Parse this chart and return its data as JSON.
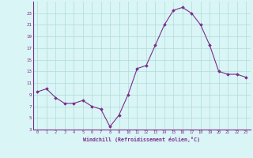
{
  "x": [
    0,
    1,
    2,
    3,
    4,
    5,
    6,
    7,
    8,
    9,
    10,
    11,
    12,
    13,
    14,
    15,
    16,
    17,
    18,
    19,
    20,
    21,
    22,
    23
  ],
  "y": [
    9.5,
    10.0,
    8.5,
    7.5,
    7.5,
    8.0,
    7.0,
    6.5,
    3.5,
    5.5,
    9.0,
    13.5,
    14.0,
    17.5,
    21.0,
    23.5,
    24.0,
    23.0,
    21.0,
    17.5,
    13.0,
    12.5,
    12.5,
    12.0
  ],
  "line_color": "#7b2d8b",
  "marker_color": "#7b2d8b",
  "bg_color": "#d9f5f5",
  "grid_color": "#b0dada",
  "xlabel": "Windchill (Refroidissement éolien,°C)",
  "xlabel_color": "#7b2d8b",
  "tick_color": "#7b2d8b",
  "axis_color": "#7b2d8b",
  "ylim": [
    3,
    25
  ],
  "xlim": [
    -0.5,
    23.5
  ],
  "yticks": [
    3,
    5,
    7,
    9,
    11,
    13,
    15,
    17,
    19,
    21,
    23
  ],
  "xticks": [
    0,
    1,
    2,
    3,
    4,
    5,
    6,
    7,
    8,
    9,
    10,
    11,
    12,
    13,
    14,
    15,
    16,
    17,
    18,
    19,
    20,
    21,
    22,
    23
  ]
}
